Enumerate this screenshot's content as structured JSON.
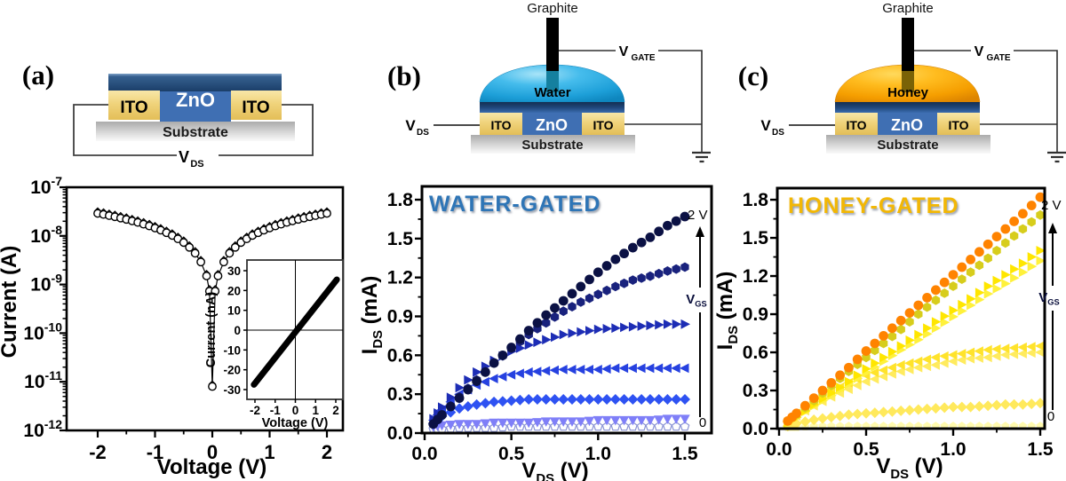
{
  "panels": {
    "a": {
      "label": "(a)",
      "schematic": {
        "zno": "ZnO",
        "ito_left": "ITO",
        "ito_right": "ITO",
        "substrate": "Substrate",
        "vds_main": "V",
        "vds_sub": "DS"
      }
    },
    "b": {
      "label": "(b)",
      "schematic": {
        "graphite": "Graphite",
        "liquid": "Water",
        "zno": "ZnO",
        "ito_left": "ITO",
        "ito_right": "ITO",
        "substrate": "Substrate",
        "vds_main": "V",
        "vds_sub": "DS",
        "vgate_main": "V",
        "vgate_sub": "GATE",
        "liquid_color": "#29A8E0"
      }
    },
    "c": {
      "label": "(c)",
      "schematic": {
        "graphite": "Graphite",
        "liquid": "Honey",
        "zno": "ZnO",
        "ito_left": "ITO",
        "ito_right": "ITO",
        "substrate": "Substrate",
        "vds_main": "V",
        "vds_sub": "DS",
        "vgate_main": "V",
        "vgate_sub": "GATE",
        "liquid_color": "#FFAE00"
      }
    }
  },
  "chart_data": [
    {
      "id": "two-terminal-iv",
      "type": "scatter",
      "title": "",
      "xlabel": "Voltage (V)",
      "ylabel": "Current (A)",
      "x_ticks": [
        -2,
        -1,
        0,
        1,
        2
      ],
      "x_minor_ticks": [
        -1.5,
        -0.5,
        0.5,
        1.5
      ],
      "xlim": [
        -2.55,
        2.55
      ],
      "y_scale": "log",
      "y_tick_exponents": [
        -7,
        -8,
        -9,
        -10,
        -11,
        -12
      ],
      "ylim_exponents": [
        -12,
        -7
      ],
      "marker_primary": "circle",
      "marker_secondary": "diamond",
      "second_sweep_factor": 1.12,
      "voltages": [
        -2,
        -1.9,
        -1.8,
        -1.7,
        -1.6,
        -1.5,
        -1.4,
        -1.3,
        -1.2,
        -1.1,
        -1,
        -0.9,
        -0.8,
        -0.7,
        -0.6,
        -0.5,
        -0.4,
        -0.3,
        -0.2,
        -0.1,
        -0.05,
        0,
        0.05,
        0.1,
        0.2,
        0.3,
        0.4,
        0.5,
        0.6,
        0.7,
        0.8,
        0.9,
        1,
        1.1,
        1.2,
        1.3,
        1.4,
        1.5,
        1.6,
        1.7,
        1.8,
        1.9,
        2
      ],
      "current_nA": [
        29,
        27.6,
        26.1,
        24.7,
        23.2,
        21.8,
        20.3,
        18.9,
        17.4,
        16,
        14.5,
        13.1,
        11.6,
        10.2,
        8.7,
        7.3,
        5.8,
        4.4,
        2.9,
        1.5,
        0.73,
        0.008,
        0.73,
        1.5,
        2.9,
        4.4,
        5.8,
        7.3,
        8.7,
        10.2,
        11.6,
        13.1,
        14.5,
        16,
        17.4,
        18.9,
        20.3,
        21.8,
        23.2,
        24.7,
        26.1,
        27.6,
        29
      ],
      "inset": {
        "xlabel": "Voltage (V)",
        "ylabel": "Current (nA)",
        "x_ticks": [
          -2,
          -1,
          0,
          1,
          2
        ],
        "y_ticks": [
          30,
          20,
          10,
          0,
          -10,
          -20,
          -30
        ],
        "xlim": [
          -2.5,
          2.5
        ],
        "ylim": [
          -35,
          35
        ],
        "line": [
          [
            -2.05,
            -27.5
          ],
          [
            2.05,
            25.5
          ]
        ],
        "line_width": 7
      }
    },
    {
      "id": "water-gated",
      "type": "scatter",
      "title": "WATER-GATED",
      "title_color": "#2E75B6",
      "xlabel": {
        "main": "V",
        "sub": "DS",
        "rest": " (V)"
      },
      "ylabel": {
        "main": "I",
        "sub": "DS",
        "rest": " (mA)"
      },
      "x_ticks": [
        0,
        0.5,
        1,
        1.5
      ],
      "y_ticks": [
        0,
        0.3,
        0.6,
        0.9,
        1.2,
        1.5,
        1.8
      ],
      "xlim": [
        0,
        1.65
      ],
      "ylim": [
        0,
        1.9
      ],
      "anno_top": "2 V",
      "anno_bottom": "0",
      "arrow_label_main": "V",
      "arrow_label_sub": "GS",
      "x": [
        0.05,
        0.1,
        0.2,
        0.3,
        0.4,
        0.5,
        0.6,
        0.7,
        0.8,
        0.9,
        1,
        1.1,
        1.2,
        1.3,
        1.4,
        1.5
      ],
      "series": [
        {
          "gate_label": "2 V",
          "marker": "circle",
          "color": "#0B1144",
          "values": [
            0.07,
            0.14,
            0.27,
            0.4,
            0.54,
            0.66,
            0.79,
            0.91,
            1.02,
            1.13,
            1.24,
            1.34,
            1.43,
            1.51,
            1.6,
            1.67
          ]
        },
        {
          "gate_label": "",
          "marker": "hexagon",
          "color": "#19227D",
          "values": [
            0.07,
            0.14,
            0.28,
            0.41,
            0.54,
            0.65,
            0.76,
            0.85,
            0.94,
            1.01,
            1.07,
            1.13,
            1.18,
            1.21,
            1.25,
            1.28
          ]
        },
        {
          "gate_label": "",
          "marker": "tri-right",
          "color": "#1D2DB5",
          "values": [
            0.11,
            0.2,
            0.35,
            0.47,
            0.56,
            0.63,
            0.68,
            0.72,
            0.76,
            0.78,
            0.8,
            0.81,
            0.82,
            0.83,
            0.84,
            0.84
          ]
        },
        {
          "gate_label": "",
          "marker": "tri-left",
          "color": "#2641E0",
          "values": [
            0.1,
            0.18,
            0.3,
            0.37,
            0.42,
            0.45,
            0.47,
            0.48,
            0.49,
            0.49,
            0.49,
            0.5,
            0.5,
            0.5,
            0.5,
            0.5
          ]
        },
        {
          "gate_label": "",
          "marker": "diamond",
          "color": "#2E52F2",
          "values": [
            0.07,
            0.13,
            0.19,
            0.22,
            0.24,
            0.25,
            0.26,
            0.26,
            0.26,
            0.26,
            0.26,
            0.26,
            0.26,
            0.26,
            0.26,
            0.26
          ]
        },
        {
          "gate_label": "",
          "marker": "tri-down",
          "color": "#7F7FF8",
          "values": [
            0.05,
            0.06,
            0.07,
            0.07,
            0.08,
            0.08,
            0.08,
            0.09,
            0.09,
            0.09,
            0.1,
            0.1,
            0.1,
            0.1,
            0.11,
            0.11
          ]
        },
        {
          "gate_label": "0",
          "marker": "pentagon",
          "color": "#FFFFFF",
          "stroke": "#8A93D4",
          "values": [
            0.03,
            0.03,
            0.04,
            0.04,
            0.04,
            0.05,
            0.05,
            0.05,
            0.05,
            0.05,
            0.05,
            0.05,
            0.05,
            0.05,
            0.05,
            0.05
          ]
        }
      ]
    },
    {
      "id": "honey-gated",
      "type": "scatter",
      "title": "HONEY-GATED",
      "title_color": "#F2B705",
      "xlabel": {
        "main": "V",
        "sub": "DS",
        "rest": " (V)"
      },
      "ylabel": {
        "main": "I",
        "sub": "DS",
        "rest": " (mA)"
      },
      "x_ticks": [
        0,
        0.5,
        1,
        1.5
      ],
      "y_ticks": [
        0,
        0.3,
        0.6,
        0.9,
        1.2,
        1.5,
        1.8
      ],
      "xlim": [
        0,
        1.65
      ],
      "ylim": [
        0,
        1.9
      ],
      "anno_top": "2 V",
      "anno_bottom": "0",
      "arrow_label_main": "V",
      "arrow_label_sub": "GS",
      "x": [
        0.05,
        0.1,
        0.2,
        0.3,
        0.4,
        0.5,
        0.6,
        0.7,
        0.8,
        0.9,
        1,
        1.1,
        1.2,
        1.3,
        1.4,
        1.5
      ],
      "series": [
        {
          "gate_label": "2 V",
          "marker": "circle",
          "color": "#FF8300",
          "values": [
            0.06,
            0.12,
            0.24,
            0.36,
            0.48,
            0.61,
            0.73,
            0.85,
            0.97,
            1.09,
            1.21,
            1.33,
            1.45,
            1.57,
            1.69,
            1.82
          ]
        },
        {
          "gate_label": "",
          "marker": "hexagon",
          "color": "#D7CD1C",
          "values": [
            0.06,
            0.11,
            0.22,
            0.34,
            0.45,
            0.56,
            0.67,
            0.78,
            0.9,
            1.01,
            1.12,
            1.23,
            1.34,
            1.46,
            1.57,
            1.68
          ]
        },
        {
          "gate_label": "",
          "marker": "tri-right",
          "color": "#FFE600",
          "values": [
            0.05,
            0.09,
            0.19,
            0.28,
            0.37,
            0.47,
            0.56,
            0.65,
            0.74,
            0.84,
            0.93,
            1.02,
            1.12,
            1.21,
            1.3,
            1.4
          ]
        },
        {
          "gate_label": "",
          "marker": "tri-right",
          "color": "#FFF13B",
          "values": [
            0.04,
            0.09,
            0.18,
            0.26,
            0.35,
            0.44,
            0.53,
            0.62,
            0.7,
            0.79,
            0.88,
            0.97,
            1.06,
            1.14,
            1.23,
            1.32
          ]
        },
        {
          "gate_label": "",
          "marker": "tri-left",
          "color": "#FFE32B",
          "values": [
            0.06,
            0.12,
            0.21,
            0.29,
            0.36,
            0.42,
            0.46,
            0.5,
            0.53,
            0.56,
            0.58,
            0.6,
            0.62,
            0.63,
            0.64,
            0.65
          ]
        },
        {
          "gate_label": "",
          "marker": "tri-left",
          "color": "#FFEB5E",
          "values": [
            0.05,
            0.1,
            0.18,
            0.25,
            0.31,
            0.37,
            0.41,
            0.45,
            0.48,
            0.5,
            0.53,
            0.55,
            0.56,
            0.58,
            0.59,
            0.6
          ]
        },
        {
          "gate_label": "",
          "marker": "diamond",
          "color": "#FFE95C",
          "values": [
            0.02,
            0.04,
            0.07,
            0.09,
            0.11,
            0.12,
            0.13,
            0.14,
            0.15,
            0.16,
            0.17,
            0.17,
            0.18,
            0.19,
            0.19,
            0.2
          ]
        },
        {
          "gate_label": "0",
          "marker": "pentagon",
          "color": "#FFFAAE",
          "values": [
            0.01,
            0.01,
            0.02,
            0.02,
            0.02,
            0.02,
            0.02,
            0.02,
            0.02,
            0.02,
            0.02,
            0.02,
            0.02,
            0.02,
            0.02,
            0.02
          ]
        }
      ]
    }
  ]
}
